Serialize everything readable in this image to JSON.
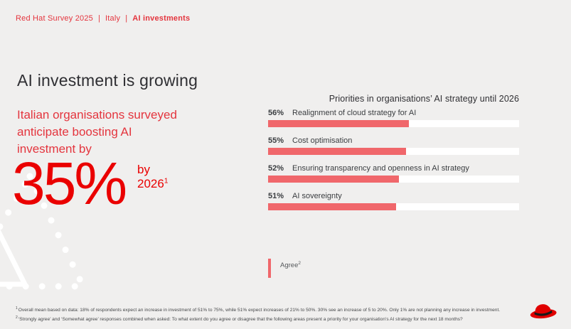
{
  "eyebrow": {
    "part1": "Red Hat Survey 2025",
    "separator": "|",
    "part2": "Italy",
    "part3": "AI investments"
  },
  "headline": "AI investment is growing",
  "intro": {
    "line1": "Italian organisations surveyed",
    "line2": "anticipate boosting AI",
    "line3": "investment by"
  },
  "big_stat": {
    "value": "35%",
    "qualifier": "by 2026",
    "footnote_ref": "1"
  },
  "chart_data": {
    "type": "bar",
    "title": "Priorities in organisations’ AI strategy until 2026",
    "categories": [
      "Realignment of cloud strategy for AI",
      "Cost optimisation",
      "Ensuring transparency and openness in AI strategy",
      "AI sovereignty"
    ],
    "values": [
      56,
      55,
      52,
      51
    ],
    "unit": "%",
    "xlim": [
      0,
      100
    ],
    "legend_position": "bottom-left",
    "rows": [
      {
        "pct": "56%",
        "label": "Realignment of cloud strategy for AI",
        "value": 56
      },
      {
        "pct": "55%",
        "label": "Cost optimisation",
        "value": 55
      },
      {
        "pct": "52%",
        "label": "Ensuring transparency and openness in AI strategy",
        "value": 52
      },
      {
        "pct": "51%",
        "label": "AI sovereignty",
        "value": 51
      }
    ],
    "legend": {
      "label": "Agree",
      "footnote_ref": "2"
    }
  },
  "footnotes": [
    {
      "ref": "1",
      "text": "Overall mean based on data: 18% of respondents expect an increase in investment of 51% to 75%, while 51% expect increases of 21% to 50%. 30% see an increase of 5 to 20%. Only 1% are not planning any increase in investment."
    },
    {
      "ref": "2",
      "text": "‘Strongly agree’ and ‘Somewhat agree’ responses combined when asked: To what extent do you agree or disagree that the following areas present a priority for your organisation’s AI strategy for the next 18 months?"
    }
  ],
  "logo": "red-hat-fedora",
  "colors": {
    "background": "#f0efee",
    "brand_red": "#ea0000",
    "text_red": "#e4353e",
    "bar_fill": "#f0676b",
    "bar_track": "#ffffff",
    "text_dark": "#2f2f33",
    "text_gray": "#46484a"
  }
}
